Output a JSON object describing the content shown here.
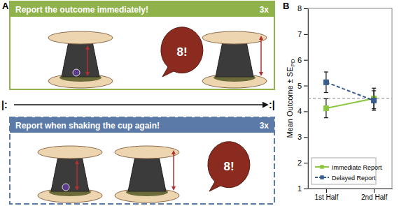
{
  "panel_labels": [
    "A",
    "B"
  ],
  "diagram": {
    "repeat_start": "|:",
    "repeat_end": ":|",
    "top": {
      "instruction": "Report the outcome immediately!",
      "repeat": "3x",
      "speech": "8!"
    },
    "bottom": {
      "instruction": "Report when shaking the cup again!",
      "repeat": "3x",
      "speech": "8!"
    }
  },
  "chart_data": {
    "type": "line",
    "y_label": "Mean Outcome ± SE",
    "y_label_sub": "PD",
    "categories": [
      "1st Half",
      "2nd Half"
    ],
    "ylim": [
      1,
      8
    ],
    "yticks": [
      1,
      2,
      3,
      4,
      5,
      6,
      7,
      8
    ],
    "hline": 4.5,
    "grid": false,
    "legend": "lower left",
    "series": [
      {
        "name": "Immediate Report",
        "color": "#8dc63f",
        "marker": "square",
        "line_style": "solid",
        "values": [
          4.12,
          4.5
        ],
        "errors": [
          0.37,
          0.4
        ]
      },
      {
        "name": "Delayed Report",
        "color": "#3a5d8f",
        "marker": "square",
        "line_style": "dashed",
        "values": [
          5.13,
          4.42
        ],
        "errors": [
          0.4,
          0.38
        ]
      }
    ]
  }
}
